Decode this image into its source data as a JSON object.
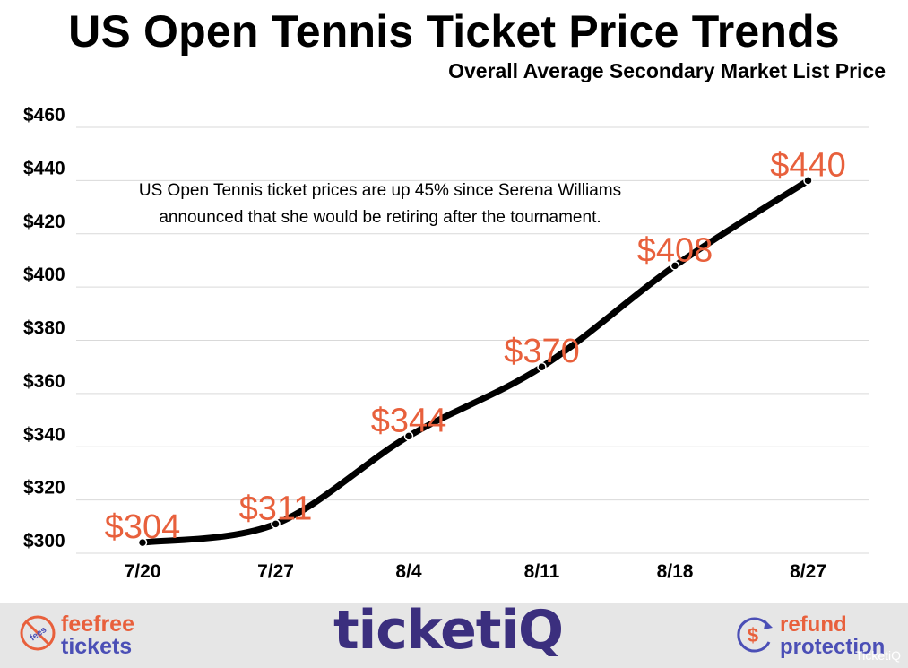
{
  "chart_data": {
    "type": "line",
    "title": "US Open Tennis Ticket Price Trends",
    "subtitle": "Overall Average Secondary Market List Price",
    "categories": [
      "7/20",
      "7/27",
      "8/4",
      "8/11",
      "8/18",
      "8/27"
    ],
    "series": [
      {
        "values": [
          304,
          311,
          344,
          370,
          408,
          440
        ],
        "data_labels": [
          "$304",
          "$311",
          "$344",
          "$370",
          "$408",
          "$440"
        ]
      }
    ],
    "ylim": [
      300,
      460
    ],
    "yticks": [
      300,
      320,
      340,
      360,
      380,
      400,
      420,
      440,
      460
    ],
    "ytick_labels": [
      "$300",
      "$320",
      "$340",
      "$360",
      "$380",
      "$400",
      "$420",
      "$440",
      "$460"
    ],
    "annotation_lines": [
      "US Open Tennis ticket prices are up 45% since Serena Williams",
      "announced that she would be retiring after the tournament."
    ],
    "grid": true,
    "colors": {
      "line": "#000000",
      "data_label": "#e8603c",
      "grid": "#d9d9d9"
    }
  },
  "footer": {
    "brand": "ticketiQ",
    "feefree_line1": "feefree",
    "feefree_line2": "tickets",
    "feefree_badge": "fees",
    "refund_line1": "refund",
    "refund_line2": "protection",
    "watermark": "TicketiQ",
    "colors": {
      "background": "#e6e6e6",
      "orange": "#e8603c",
      "purple": "#4b4fb6",
      "brand": "#3b2f7e"
    }
  }
}
